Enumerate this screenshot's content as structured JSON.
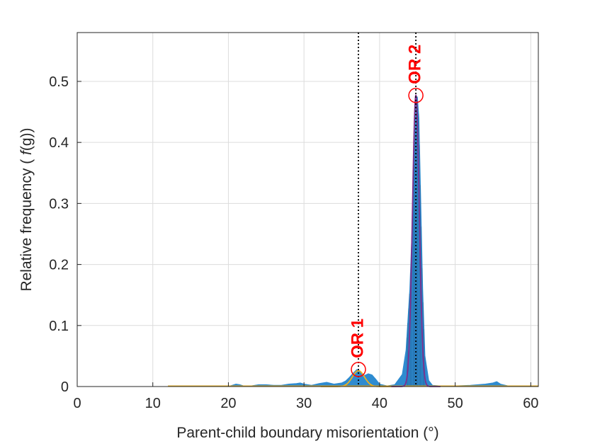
{
  "chart_data": {
    "type": "area",
    "title": "",
    "xlabel": "Parent-child boundary misorientation (°)",
    "ylabel_prefix": "Relative frequency ( ",
    "ylabel_italic": "f",
    "ylabel_suffix": "(g))",
    "xlim": [
      0,
      61
    ],
    "ylim": [
      0,
      0.58
    ],
    "xticks": [
      0,
      10,
      20,
      30,
      40,
      50,
      60
    ],
    "xtick_labels": [
      "0",
      "10",
      "20",
      "30",
      "40",
      "50",
      "60"
    ],
    "yticks": [
      0,
      0.1,
      0.2,
      0.3,
      0.4,
      0.5
    ],
    "ytick_labels": [
      "0",
      "0.1",
      "0.2",
      "0.3",
      "0.4",
      "0.5"
    ],
    "grid": true,
    "colors": {
      "histogram": "#2e8bd0",
      "fit_or1": "#edb120",
      "fit_or2": "#7e2f8e",
      "base_line": "#d9a520",
      "marker": "#ff0000",
      "guide_line": "#000000"
    },
    "histogram": {
      "x": [
        12,
        20,
        20.5,
        21,
        21.5,
        22,
        23,
        24,
        25,
        26,
        27,
        28,
        29,
        29.5,
        30,
        31,
        32,
        33,
        34,
        35,
        35.5,
        36,
        36.5,
        37,
        37.5,
        38,
        38.5,
        39,
        39.5,
        40,
        41,
        42,
        43,
        43.5,
        44,
        44.3,
        44.6,
        44.8,
        45,
        45.2,
        45.4,
        45.7,
        46,
        46.5,
        47,
        48,
        50,
        52,
        54,
        55,
        55.5,
        56,
        57,
        61
      ],
      "y": [
        0,
        0.0,
        0.002,
        0.004,
        0.003,
        0.001,
        0.001,
        0.003,
        0.003,
        0.002,
        0.002,
        0.004,
        0.005,
        0.006,
        0.004,
        0.002,
        0.005,
        0.007,
        0.004,
        0.006,
        0.009,
        0.015,
        0.022,
        0.028,
        0.024,
        0.018,
        0.021,
        0.019,
        0.012,
        0.004,
        0.001,
        0.003,
        0.02,
        0.06,
        0.16,
        0.26,
        0.38,
        0.46,
        0.475,
        0.44,
        0.33,
        0.16,
        0.05,
        0.01,
        0.002,
        0.001,
        0.001,
        0.002,
        0.004,
        0.006,
        0.008,
        0.004,
        0.001,
        0
      ]
    },
    "fits": [
      {
        "name": "",
        "center": 37.2,
        "amplitude": 0.026,
        "sigma": 0.8,
        "color_key": "fit_or1"
      },
      {
        "name": "",
        "center": 44.8,
        "amplitude": 0.478,
        "sigma": 0.45,
        "color_key": "fit_or2"
      }
    ],
    "peaks": [
      {
        "label": "OR 1",
        "x": 37.2,
        "y": 0.028
      },
      {
        "label": "OR 2",
        "x": 44.8,
        "y": 0.477
      }
    ]
  }
}
